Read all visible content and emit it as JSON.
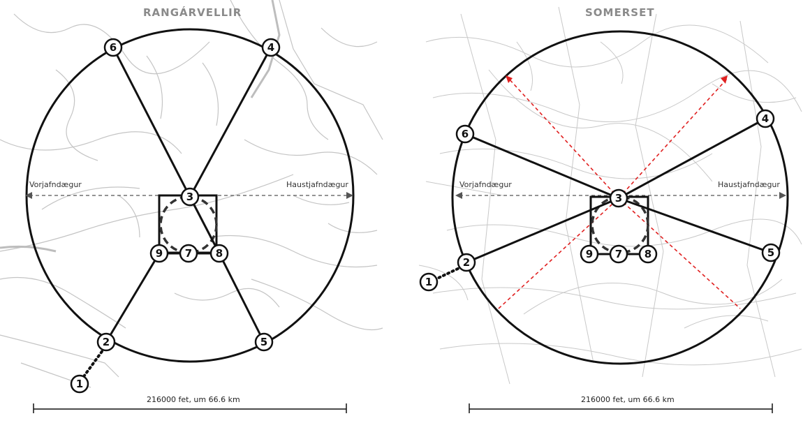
{
  "panels": [
    {
      "title": "RANGÁRVELLIR",
      "equinox_left": "Vorjafndægur",
      "equinox_right": "Haustjafndægur",
      "scale": "216000 fet, um 66.6 km",
      "nodes": [
        "1",
        "2",
        "3",
        "4",
        "5",
        "6",
        "7",
        "8",
        "9"
      ]
    },
    {
      "title": "SOMERSET",
      "equinox_left": "Vorjafndægur",
      "equinox_right": "Haustjafndægur",
      "scale": "216000 fet, um 66.6 km",
      "nodes": [
        "1",
        "2",
        "3",
        "4",
        "5",
        "6",
        "7",
        "8",
        "9"
      ]
    }
  ],
  "colors": {
    "lines": "#111111",
    "terrain": "#c4c4c4",
    "red_arrows": "#e02020",
    "equinox_line": "#555555"
  }
}
